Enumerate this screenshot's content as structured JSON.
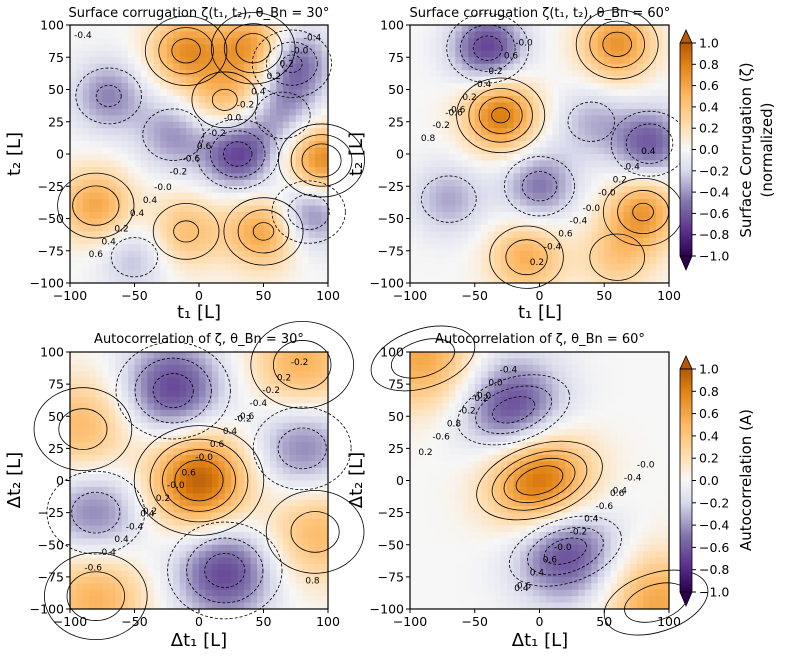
{
  "chart_data": [
    {
      "type": "heatmap",
      "title": "Surface corrugation ζ(t₁, t₂), θ_Bn = 30°",
      "xlabel": "t₁ [L]",
      "ylabel": "t₂ [L]",
      "xlim": [
        -100,
        100
      ],
      "ylim": [
        -100,
        100
      ],
      "xticks": [
        "−100",
        "−50",
        "0",
        "50",
        "100"
      ],
      "yticks": [
        "−100",
        "−75",
        "−50",
        "−25",
        "0",
        "25",
        "50",
        "75",
        "100"
      ],
      "contour_levels": [
        -0.8,
        -0.6,
        -0.4,
        -0.2,
        0.0,
        0.2,
        0.4,
        0.6,
        0.8
      ],
      "contour_labels": [
        "-0.4",
        "-0.2",
        "0.2",
        "0.4",
        "-0.0",
        "0.6",
        "-0.6",
        "0.2",
        "0.4",
        "-0.2",
        "0.4",
        "0.6",
        "-0.0",
        "-0.0",
        "0.4",
        "0.2",
        "-0.2",
        "-0.4"
      ],
      "features": [
        {
          "t1": -10,
          "t2": 80,
          "z": 0.7
        },
        {
          "t1": 42,
          "t2": 82,
          "z": 0.75
        },
        {
          "t1": 72,
          "t2": 70,
          "z": -0.65
        },
        {
          "t1": -70,
          "t2": 45,
          "z": -0.45
        },
        {
          "t1": 20,
          "t2": 42,
          "z": 0.45
        },
        {
          "t1": 65,
          "t2": 30,
          "z": -0.35
        },
        {
          "t1": -20,
          "t2": 15,
          "z": -0.4
        },
        {
          "t1": 30,
          "t2": 0,
          "z": -0.7
        },
        {
          "t1": 95,
          "t2": -5,
          "z": 0.8
        },
        {
          "t1": -80,
          "t2": -40,
          "z": 0.6
        },
        {
          "t1": -10,
          "t2": -60,
          "z": 0.45
        },
        {
          "t1": 50,
          "t2": -60,
          "z": 0.65
        },
        {
          "t1": 85,
          "t2": -45,
          "z": -0.55
        },
        {
          "t1": -50,
          "t2": -80,
          "z": -0.3
        }
      ]
    },
    {
      "type": "heatmap",
      "title": "Surface corrugation ζ(t₁, t₂), θ_Bn = 60°",
      "xlabel": "t₁ [L]",
      "ylabel": "t₂ [L]",
      "xlim": [
        -100,
        100
      ],
      "ylim": [
        -100,
        100
      ],
      "xticks": [
        "−100",
        "−50",
        "0",
        "50",
        "100"
      ],
      "yticks": [
        "−100",
        "−75",
        "−50",
        "−25",
        "0",
        "25",
        "50",
        "75",
        "100"
      ],
      "contour_levels": [
        -0.8,
        -0.6,
        -0.4,
        -0.2,
        0.0,
        0.2,
        0.4,
        0.6,
        0.8
      ],
      "contour_labels": [
        "-0.6",
        "-0.4",
        "0.4",
        "0.6",
        "-0.0",
        "0.2",
        "0.6",
        "0.8",
        "-0.0",
        "0.2",
        "-0.4",
        "-0.4",
        "-0.2",
        "0.2",
        "0.4",
        "0.2",
        "-0.0",
        "-0.6"
      ],
      "features": [
        {
          "t1": -40,
          "t2": 82,
          "z": -0.7
        },
        {
          "t1": 60,
          "t2": 85,
          "z": 0.7
        },
        {
          "t1": -30,
          "t2": 30,
          "z": 0.85
        },
        {
          "t1": 40,
          "t2": 25,
          "z": -0.3
        },
        {
          "t1": 85,
          "t2": 8,
          "z": -0.6
        },
        {
          "t1": 0,
          "t2": -25,
          "z": -0.5
        },
        {
          "t1": -70,
          "t2": -35,
          "z": -0.35
        },
        {
          "t1": 80,
          "t2": -45,
          "z": 0.65
        },
        {
          "t1": -10,
          "t2": -80,
          "z": 0.55
        },
        {
          "t1": 60,
          "t2": -80,
          "z": 0.35
        }
      ]
    },
    {
      "type": "heatmap",
      "title": "Autocorrelation of ζ, θ_Bn = 30°",
      "xlabel": "Δt₁ [L]",
      "ylabel": "Δt₂ [L]",
      "xlim": [
        -100,
        100
      ],
      "ylim": [
        -100,
        100
      ],
      "xticks": [
        "−100",
        "−50",
        "0",
        "50",
        "100"
      ],
      "yticks": [
        "−100",
        "−75",
        "−50",
        "−25",
        "0",
        "25",
        "50",
        "75",
        "100"
      ],
      "contour_levels": [
        -0.8,
        -0.6,
        -0.4,
        -0.2,
        0.0,
        0.2,
        0.4,
        0.6,
        0.8
      ],
      "contour_labels": [
        "0.2",
        "-0.6",
        "0.4",
        "-0.0",
        "-0.2",
        "0.2",
        "-0.4",
        "0.4",
        "0.6",
        "0.8",
        "-0.0",
        "-0.2",
        "-0.4",
        "0.4",
        "-0.6",
        "0.6",
        "0.2",
        "0.4",
        "-0.2"
      ],
      "features": [
        {
          "t1": 0,
          "t2": 0,
          "z": 1.0
        },
        {
          "t1": -20,
          "t2": 70,
          "z": -0.7
        },
        {
          "t1": 20,
          "t2": -70,
          "z": -0.7
        },
        {
          "t1": 80,
          "t2": 90,
          "z": 0.55
        },
        {
          "t1": -80,
          "t2": -90,
          "z": 0.55
        },
        {
          "t1": -90,
          "t2": 40,
          "z": 0.5
        },
        {
          "t1": 90,
          "t2": -40,
          "z": 0.5
        },
        {
          "t1": -80,
          "t2": -25,
          "z": -0.5
        },
        {
          "t1": 80,
          "t2": 25,
          "z": -0.5
        }
      ]
    },
    {
      "type": "heatmap",
      "title": "Autocorrelation of ζ, θ_Bn = 60°",
      "xlabel": "Δt₁ [L]",
      "ylabel": "Δt₂ [L]",
      "xlim": [
        -100,
        100
      ],
      "ylim": [
        -100,
        100
      ],
      "xticks": [
        "−100",
        "−50",
        "0",
        "50",
        "100"
      ],
      "yticks": [
        "−100",
        "−75",
        "−50",
        "−25",
        "0",
        "25",
        "50",
        "75",
        "100"
      ],
      "contour_levels": [
        -0.8,
        -0.6,
        -0.4,
        -0.2,
        0.0,
        0.2,
        0.4,
        0.6,
        0.8
      ],
      "contour_labels": [
        "0.6",
        "0.4",
        "-0.0",
        "-0.2",
        "-0.6",
        "0.4",
        "-0.4",
        "0.0",
        "0.4",
        "0.8",
        "0.6",
        "-0.0",
        "-0.4",
        "-0.6",
        "-0.2",
        "-0.0",
        "0.2",
        "0.4",
        "0.6",
        "-0.2"
      ],
      "features": [
        {
          "t1": 0,
          "t2": 0,
          "z": 1.0
        },
        {
          "t1": -20,
          "t2": 55,
          "z": -0.72
        },
        {
          "t1": 20,
          "t2": -55,
          "z": -0.72
        },
        {
          "t1": -90,
          "t2": 95,
          "z": 0.6
        },
        {
          "t1": 90,
          "t2": -95,
          "z": 0.6
        }
      ]
    }
  ],
  "colorbars": [
    {
      "label_line1": "Surface Corrugation (ζ)",
      "label_line2": "(normalized)",
      "ticks": [
        "1.0",
        "0.8",
        "0.6",
        "0.4",
        "0.2",
        "0.0",
        "−0.2",
        "−0.4",
        "−0.6",
        "−0.8",
        "−1.0"
      ],
      "range": [
        -1.0,
        1.0
      ],
      "extend": "both"
    },
    {
      "label_line1": "Autocorrelation (A)",
      "ticks": [
        "1.0",
        "0.8",
        "0.6",
        "0.4",
        "0.2",
        "0.0",
        "−0.2",
        "−0.4",
        "−0.6",
        "−0.8",
        "−1.0"
      ],
      "range": [
        -1.0,
        1.0
      ],
      "extend": "both"
    }
  ],
  "colormap": {
    "name": "PuOr",
    "negative_end": "#3b0f70",
    "mid": "#f7f7f7",
    "positive_end": "#b35806"
  }
}
